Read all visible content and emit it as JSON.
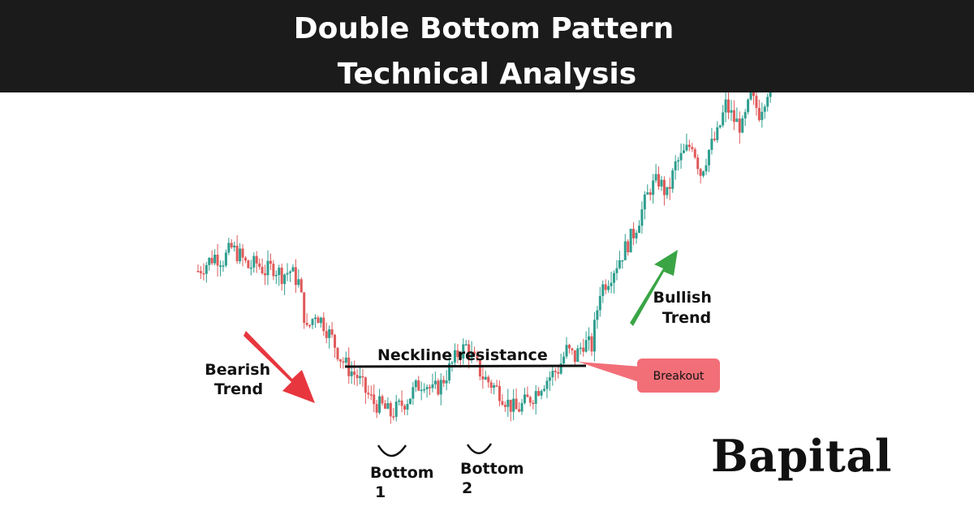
{
  "title": {
    "line1": "Double Bottom Pattern",
    "line2": "Technical Analysis"
  },
  "brand": "Bapital",
  "colors": {
    "header_bg": "#1b1b1b",
    "bullish_candle": "#2e9e8f",
    "bearish_candle": "#e05a5a",
    "bearish_arrow": "#e8363f",
    "bullish_arrow": "#3aa545",
    "breakout_box": "#f26f78"
  },
  "chart_data": {
    "type": "line",
    "title": "Double Bottom Pattern Technical Analysis",
    "xlabel": "",
    "ylabel": "",
    "grid": false,
    "legend": "none",
    "series": [
      {
        "values": [
          66,
          68,
          70,
          69,
          72,
          70,
          67,
          68,
          66,
          67,
          65,
          66,
          63,
          50,
          55,
          52,
          48,
          43,
          40,
          38,
          34,
          31,
          30,
          28,
          30,
          32,
          35,
          37,
          34,
          36,
          40,
          44,
          46,
          42,
          38,
          36,
          34,
          31,
          29,
          31,
          33,
          36,
          38,
          40,
          45,
          43,
          47,
          46,
          61,
          64,
          68,
          72,
          76,
          82,
          88,
          90,
          86,
          94,
          97,
          100,
          92,
          98,
          102,
          110,
          106,
          104,
          112,
          108,
          114,
          116
        ]
      }
    ],
    "annotations": [
      {
        "text_lines": [
          "Bearish",
          "Trend"
        ],
        "arrow_direction": "down-right"
      },
      {
        "text_lines": [
          "Bullish",
          "Trend"
        ],
        "arrow_direction": "up-right"
      },
      {
        "text": "Neckline resistance",
        "level": 46
      },
      {
        "text": "Breakout"
      },
      {
        "text_lines": [
          "Bottom",
          "1"
        ]
      },
      {
        "text_lines": [
          "Bottom",
          "2"
        ]
      }
    ]
  }
}
